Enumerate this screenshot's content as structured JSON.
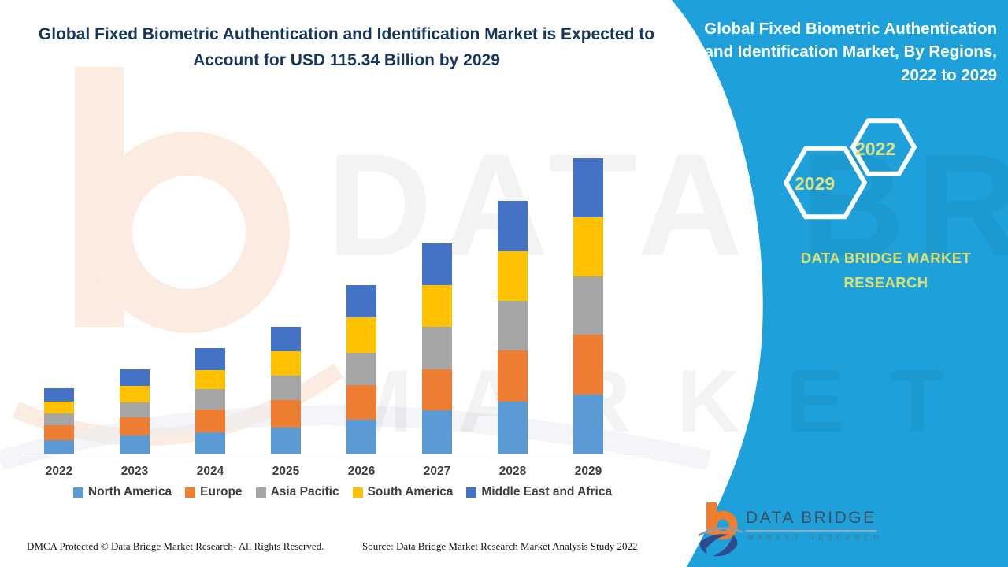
{
  "header": {
    "left_title": "Global Fixed Biometric Authentication and Identification Market is Expected to Account for USD 115.34 Billion by 2029",
    "right_title": "Global Fixed Biometric Authentication and Identification Market, By Regions, 2022 to 2029"
  },
  "side_panel": {
    "panel_color": "#1EA1DA",
    "accent_text_color": "#dce06e",
    "hexagon_big_label": "2029",
    "hexagon_small_label": "2022",
    "brand_line1": "DATA BRIDGE MARKET",
    "brand_line2": "RESEARCH"
  },
  "watermark": {
    "line1": "DATA BRIDGE",
    "line2": "MARKET RESEARCH"
  },
  "chart_data": {
    "type": "bar",
    "stacked": true,
    "unit": "USD Billion",
    "title": "Global Fixed Biometric Authentication and Identification Market, By Regions, 2022 to 2029",
    "categories": [
      "2022",
      "2023",
      "2024",
      "2025",
      "2026",
      "2027",
      "2028",
      "2029"
    ],
    "series": [
      {
        "name": "North America",
        "color": "#5B9BD5",
        "values": [
          5.2,
          7.1,
          8.3,
          10.1,
          13.2,
          16.9,
          20.3,
          23.1
        ]
      },
      {
        "name": "Europe",
        "color": "#ED7D31",
        "values": [
          5.8,
          7.1,
          8.9,
          10.8,
          13.5,
          16.0,
          20.0,
          23.4
        ]
      },
      {
        "name": "Asia Pacific",
        "color": "#A5A5A5",
        "values": [
          4.6,
          5.8,
          8.0,
          9.5,
          12.6,
          16.6,
          19.4,
          22.8
        ]
      },
      {
        "name": "South America",
        "color": "#FFC000",
        "values": [
          4.6,
          6.5,
          7.4,
          9.5,
          13.8,
          16.3,
          19.4,
          23.1
        ]
      },
      {
        "name": "Middle East and Africa",
        "color": "#4472C4",
        "values": [
          5.2,
          6.5,
          8.6,
          9.5,
          12.6,
          16.3,
          19.7,
          23.0
        ]
      }
    ],
    "totals_estimated": [
      25.4,
      33.0,
      41.2,
      49.4,
      65.7,
      82.1,
      98.8,
      115.34
    ],
    "ylim": [
      0,
      120
    ],
    "y_axis_visible": false,
    "gridlines": false,
    "legend_position": "bottom"
  },
  "footer": {
    "dmca": "DMCA Protected © Data Bridge Market Research- All Rights Reserved.",
    "source": "Source: Data Bridge Market Research Market Analysis Study 2022"
  },
  "logo": {
    "title": "DATA BRIDGE",
    "subtitle": "MARKET RESEARCH"
  }
}
